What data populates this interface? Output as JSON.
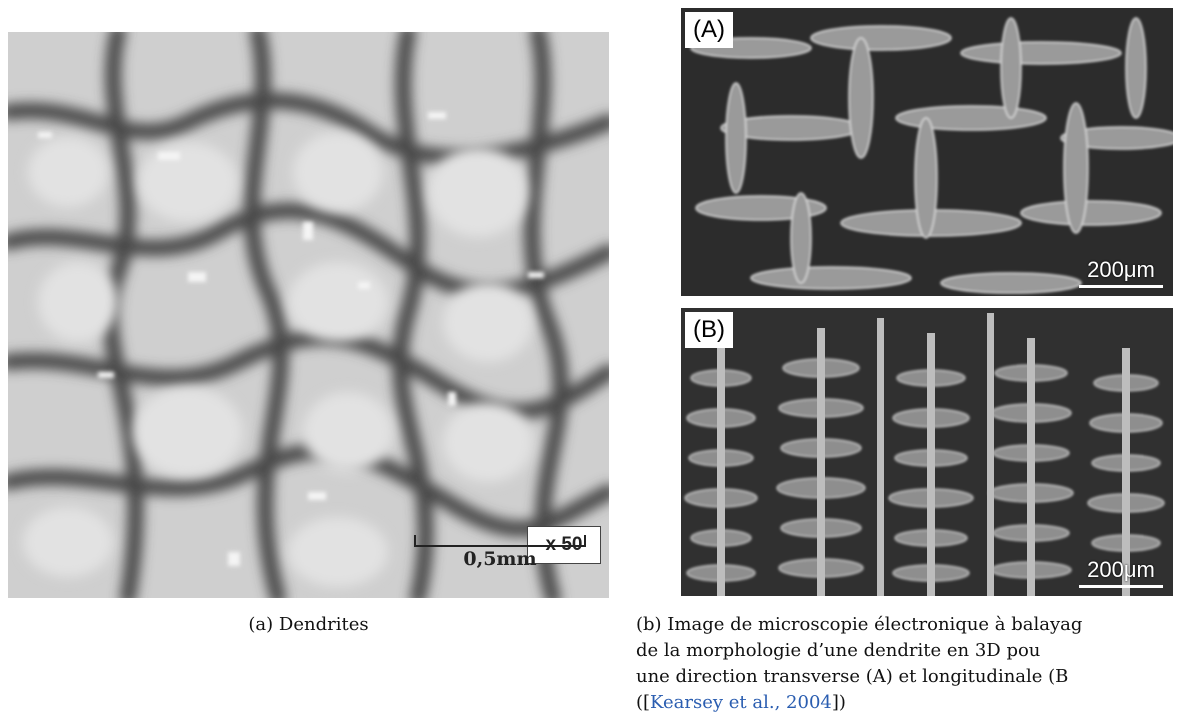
{
  "panel_a": {
    "magnification_label": "x 50",
    "scale_label": "0,5mm"
  },
  "panel_b": {
    "top": {
      "tag": "(A)",
      "scale_label": "200μm"
    },
    "bottom": {
      "tag": "(B)",
      "scale_label": "200μm"
    }
  },
  "captions": {
    "a": "(a) Dendrites",
    "b_lines": [
      "(b) Image de microscopie électronique à balayag",
      "de la morphologie d’une dendrite en 3D pou",
      "une direction transverse (A) et longitudinale (B"
    ],
    "b_ref_open": "([",
    "b_ref_link": "Kearsey et al., 2004",
    "b_ref_close": "])"
  }
}
